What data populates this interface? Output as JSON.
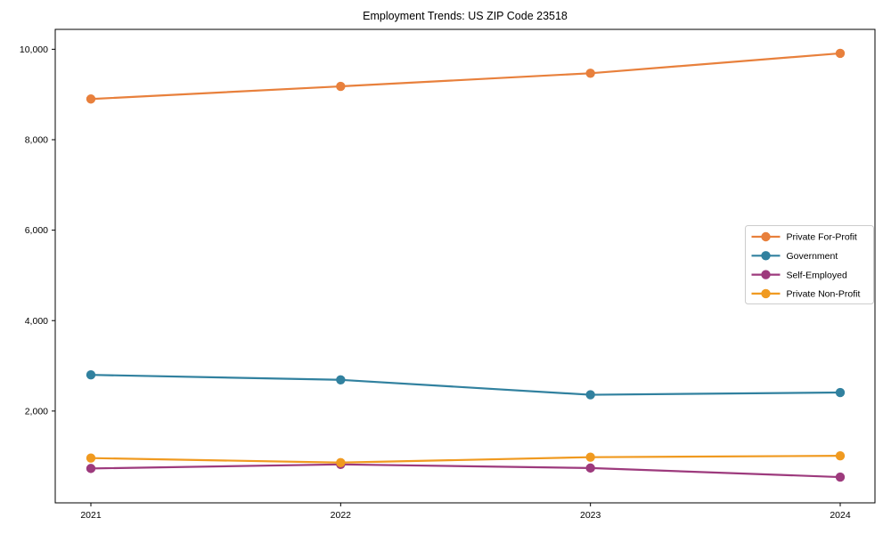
{
  "page": {
    "title": "Employment Trends: US ZIP Code 23518"
  },
  "chart_data": {
    "type": "line",
    "title": "Employment Trends: US ZIP Code 23518",
    "categories": [
      "2021",
      "2022",
      "2023",
      "2024"
    ],
    "series": [
      {
        "name": "Private For-Profit",
        "color": "#e8803c",
        "values": [
          8900,
          9180,
          9470,
          9910
        ]
      },
      {
        "name": "Government",
        "color": "#31819f",
        "values": [
          2800,
          2690,
          2360,
          2410
        ]
      },
      {
        "name": "Self-Employed",
        "color": "#9d3a7d",
        "values": [
          730,
          820,
          740,
          540
        ]
      },
      {
        "name": "Private Non-Profit",
        "color": "#f09a20",
        "values": [
          960,
          860,
          980,
          1010
        ]
      }
    ],
    "xlabel": "",
    "ylabel": "",
    "ylim": [
      -30,
      10440
    ],
    "yticks": [
      2000,
      4000,
      6000,
      8000,
      10000
    ],
    "ytick_labels": [
      "2,000",
      "4,000",
      "6,000",
      "8,000",
      "10,000"
    ],
    "xtick_labels": [
      "2021",
      "2022",
      "2023",
      "2024"
    ],
    "grid": false,
    "legend_position": "center right",
    "marker": "circle",
    "colors": {
      "axis": "#000000",
      "tick_text": "#000000",
      "legend_border": "#cccccc",
      "background": "#ffffff"
    }
  }
}
